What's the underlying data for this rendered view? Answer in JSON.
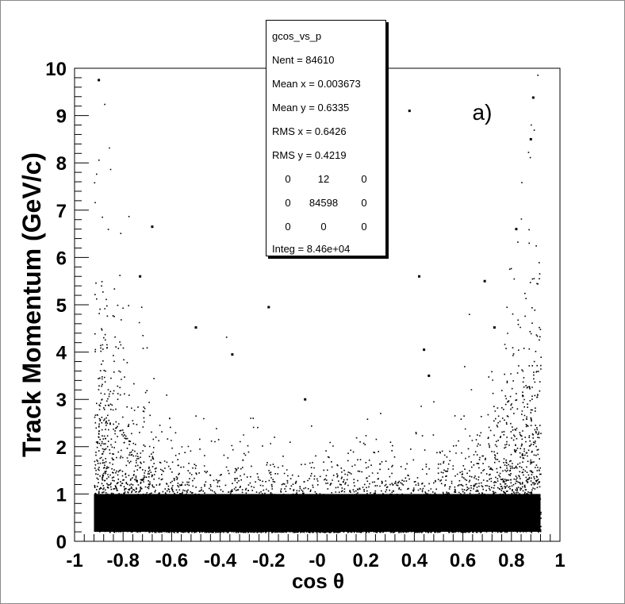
{
  "chart_data": {
    "type": "scatter",
    "xlabel": "cos θ",
    "ylabel": "Track Momentum (GeV/c)",
    "xlim": [
      -1,
      1
    ],
    "ylim": [
      0,
      10
    ],
    "x_ticks": [
      "-1",
      "-0.8",
      "-0.6",
      "-0.4",
      "-0.2",
      "-0",
      "0.2",
      "0.4",
      "0.6",
      "0.8",
      "1"
    ],
    "y_ticks": [
      "0",
      "1",
      "2",
      "3",
      "4",
      "5",
      "6",
      "7",
      "8",
      "9",
      "10"
    ],
    "annotation": "a)",
    "grid": false,
    "marker_color": "#000000",
    "description_of_distribution": {
      "x_range_filled": [
        -0.92,
        0.92
      ],
      "y_min_filled": 0.2
    },
    "outliers": [
      {
        "x": -0.9,
        "y": 9.75
      },
      {
        "x": 0.89,
        "y": 9.38
      },
      {
        "x": 0.38,
        "y": 9.1
      },
      {
        "x": 0.88,
        "y": 8.5
      },
      {
        "x": -0.68,
        "y": 6.65
      },
      {
        "x": 0.82,
        "y": 6.6
      },
      {
        "x": -0.73,
        "y": 5.6
      },
      {
        "x": 0.42,
        "y": 5.6
      },
      {
        "x": 0.69,
        "y": 5.5
      },
      {
        "x": -0.2,
        "y": 4.95
      },
      {
        "x": -0.5,
        "y": 4.52
      },
      {
        "x": 0.73,
        "y": 4.52
      },
      {
        "x": -0.35,
        "y": 3.95
      },
      {
        "x": 0.44,
        "y": 4.05
      },
      {
        "x": -0.05,
        "y": 3.0
      },
      {
        "x": 0.46,
        "y": 3.5
      }
    ],
    "stats": {
      "title": "gcos_vs_p",
      "entries_label": "Nent",
      "entries": "84610",
      "mean_x_label": "Mean x",
      "mean_x": "0.003673",
      "mean_y_label": "Mean y",
      "mean_y": "0.6335",
      "rms_x_label": "RMS x",
      "rms_x": "0.6426",
      "rms_y_label": "RMS y",
      "rms_y": "0.4219",
      "overflow_grid": [
        [
          "0",
          "12",
          "0"
        ],
        [
          "0",
          "84598",
          "0"
        ],
        [
          "0",
          "0",
          "0"
        ]
      ],
      "integral_label": "Integ",
      "integral": "8.46e+04"
    }
  }
}
